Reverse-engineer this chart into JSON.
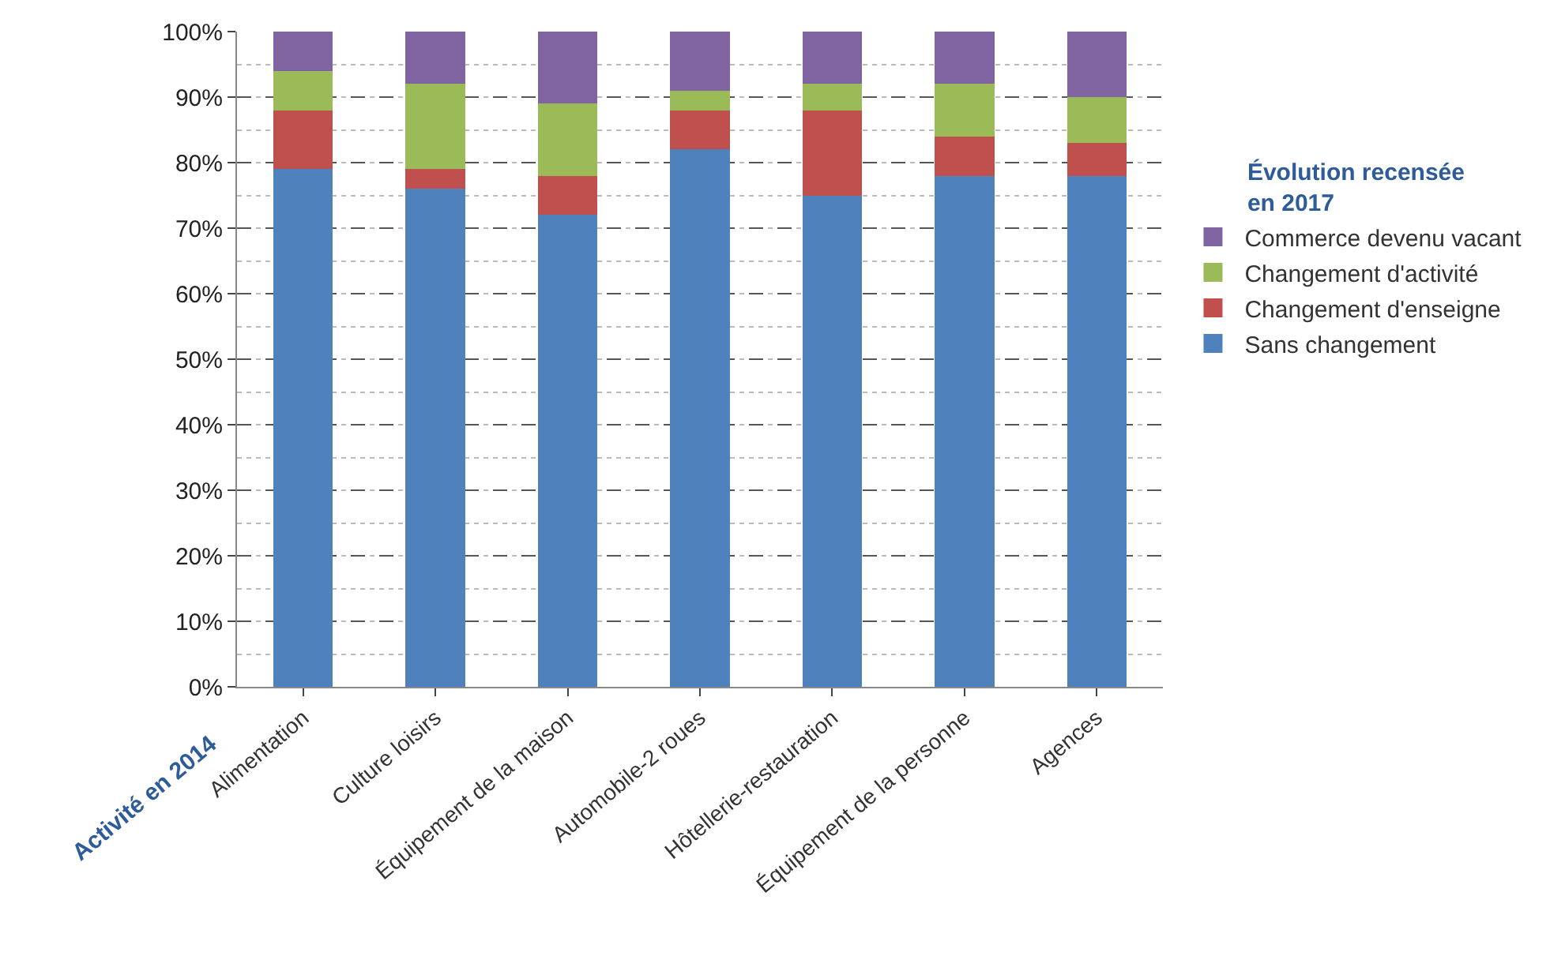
{
  "chart_data": {
    "type": "bar",
    "stacked": true,
    "xlabel": "Activité en 2014",
    "legend_title": "Évolution recensée\nen 2017",
    "categories": [
      "Alimentation",
      "Culture loisirs",
      "Équipement de la maison",
      "Automobile-2 roues",
      "Hôtellerie-restauration",
      "Équipement de la personne",
      "Agences"
    ],
    "series": [
      {
        "name": "Sans changement",
        "color": "#4f81bd",
        "values": [
          79,
          76,
          72,
          82,
          75,
          78,
          78
        ]
      },
      {
        "name": "Changement d'enseigne",
        "color": "#c0504d",
        "values": [
          9,
          3,
          6,
          6,
          13,
          6,
          5
        ]
      },
      {
        "name": "Changement d'activité",
        "color": "#9bbb59",
        "values": [
          6,
          13,
          11,
          3,
          4,
          8,
          7
        ]
      },
      {
        "name": "Commerce devenu vacant",
        "color": "#8064a2",
        "values": [
          6,
          8,
          11,
          9,
          8,
          8,
          10
        ]
      }
    ],
    "ylim": [
      0,
      100
    ],
    "yticks": [
      {
        "value": 0,
        "label": "0%"
      },
      {
        "value": 10,
        "label": "10%"
      },
      {
        "value": 20,
        "label": "20%"
      },
      {
        "value": 30,
        "label": "30%"
      },
      {
        "value": 40,
        "label": "40%"
      },
      {
        "value": 50,
        "label": "50%"
      },
      {
        "value": 60,
        "label": "60%"
      },
      {
        "value": 70,
        "label": "70%"
      },
      {
        "value": 80,
        "label": "80%"
      },
      {
        "value": 90,
        "label": "90%"
      },
      {
        "value": 100,
        "label": "100%"
      }
    ],
    "grid": "y",
    "legend": "right"
  }
}
